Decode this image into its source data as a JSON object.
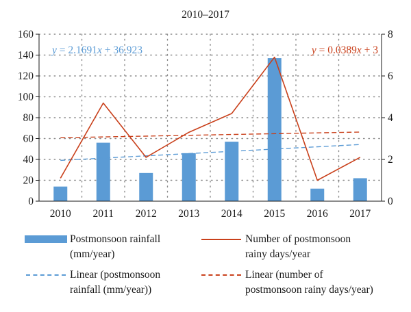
{
  "chart_data": {
    "type": "bar",
    "title": "2010–2017",
    "categories": [
      "2010",
      "2011",
      "2012",
      "2013",
      "2014",
      "2015",
      "2016",
      "2017"
    ],
    "series": [
      {
        "name": "Postmonsoon rainfall (mm/year)",
        "type": "bar",
        "axis": "left",
        "color": "#5B9BD5",
        "values": [
          14,
          56,
          27,
          46,
          57,
          137,
          12,
          22
        ]
      },
      {
        "name": "Number of postmonsoon rainy days/year",
        "type": "line",
        "axis": "right",
        "color": "#C9401B",
        "values": [
          1.1,
          4.7,
          2.1,
          3.3,
          4.2,
          6.9,
          1.0,
          2.1
        ]
      },
      {
        "name": "Linear (postmonsoon rainfall (mm/year))",
        "type": "trendline",
        "style": "dashed",
        "axis": "left",
        "color": "#5B9BD5",
        "slope": 2.1691,
        "intercept": 36.923
      },
      {
        "name": "Linear (number of postmonsoon rainy days/year)",
        "type": "trendline",
        "style": "dashed",
        "axis": "right",
        "color": "#C9401B",
        "slope": 0.0389,
        "intercept": 3
      }
    ],
    "y_left": {
      "min": 0,
      "max": 160,
      "ticks": [
        "0",
        "20",
        "40",
        "60",
        "80",
        "100",
        "120",
        "140",
        "160"
      ]
    },
    "y_right": {
      "min": 0,
      "max": 8,
      "ticks": [
        "0",
        "2",
        "4",
        "6",
        "8"
      ]
    },
    "grid": "dotted horizontal",
    "legend_position": "bottom",
    "equations": {
      "left": {
        "prefix": "y",
        "body": " = 2.1691",
        "var": "x",
        "suffix": " + 36.923",
        "color": "#5B9BD5"
      },
      "right": {
        "prefix": "y",
        "body": " = 0.0389",
        "var": "x",
        "suffix": " + 3",
        "color": "#C9401B"
      }
    }
  },
  "legend": {
    "bar_line1": "Postmonsoon rainfall",
    "bar_line2": "(mm/year)",
    "days_line1": "Number of postmonsoon",
    "days_line2": "rainy days/year",
    "trend_bar_line1": "Linear (postmonsoon",
    "trend_bar_line2": "rainfall (mm/year))",
    "trend_days_line1": "Linear (number of",
    "trend_days_line2": "postmonsoon rainy days/year)"
  }
}
